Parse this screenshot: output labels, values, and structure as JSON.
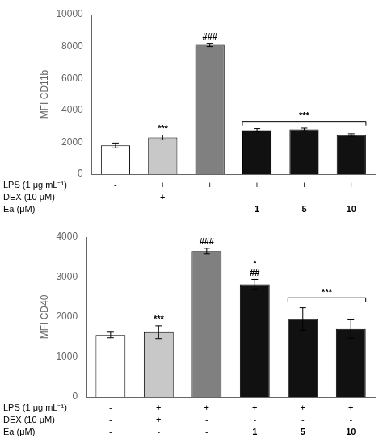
{
  "chart_data": [
    {
      "type": "bar",
      "ylabel": "MFI CD11b",
      "categories": [
        [
          "-",
          "-",
          "-"
        ],
        [
          "+",
          "+",
          "-"
        ],
        [
          "+",
          "-",
          "-"
        ],
        [
          "+",
          "-",
          "1"
        ],
        [
          "+",
          "-",
          "5"
        ],
        [
          "+",
          "-",
          "10"
        ]
      ],
      "row_labels": [
        "LPS (1 μg mL⁻¹)",
        "DEX (10 μM)",
        "Ea (μM)"
      ],
      "values": [
        1800,
        2300,
        8100,
        2750,
        2800,
        2450
      ],
      "errors": [
        150,
        150,
        100,
        100,
        80,
        80
      ],
      "colors": [
        "white",
        "#c8c8c8",
        "#808080",
        "#111111",
        "#111111",
        "#111111"
      ],
      "ylim": [
        0,
        10000
      ],
      "yticks": [
        0,
        2000,
        4000,
        6000,
        8000,
        10000
      ],
      "grid": false,
      "tick_labels": "y",
      "annotations": [
        {
          "bar": 1,
          "text": "***"
        },
        {
          "bar": 2,
          "text": "###"
        }
      ],
      "bracket": {
        "from": 3,
        "to": 5,
        "y": 3300,
        "text": "***"
      }
    },
    {
      "type": "bar",
      "ylabel": "MFI CD40",
      "categories": [
        [
          "-",
          "-",
          "-"
        ],
        [
          "+",
          "+",
          "-"
        ],
        [
          "+",
          "-",
          "-"
        ],
        [
          "+",
          "-",
          "1"
        ],
        [
          "+",
          "-",
          "5"
        ],
        [
          "+",
          "-",
          "10"
        ]
      ],
      "row_labels": [
        "LPS (1 μg mL⁻¹)",
        "DEX (10 μM)",
        "Ea (μM)"
      ],
      "values": [
        1550,
        1620,
        3650,
        2820,
        1950,
        1700
      ],
      "errors": [
        70,
        160,
        70,
        120,
        280,
        230
      ],
      "colors": [
        "white",
        "#c8c8c8",
        "#808080",
        "#111111",
        "#111111",
        "#111111"
      ],
      "ylim": [
        0,
        4000
      ],
      "yticks": [
        0,
        1000,
        2000,
        3000,
        4000
      ],
      "grid": false,
      "tick_labels": "y",
      "annotations": [
        {
          "bar": 1,
          "text": "***"
        },
        {
          "bar": 2,
          "text": "###"
        },
        {
          "bar": 3,
          "text": "*"
        },
        {
          "bar": 3,
          "text": "##"
        }
      ],
      "bracket": {
        "from": 4,
        "to": 5,
        "y": 2480,
        "text": "***"
      }
    }
  ]
}
